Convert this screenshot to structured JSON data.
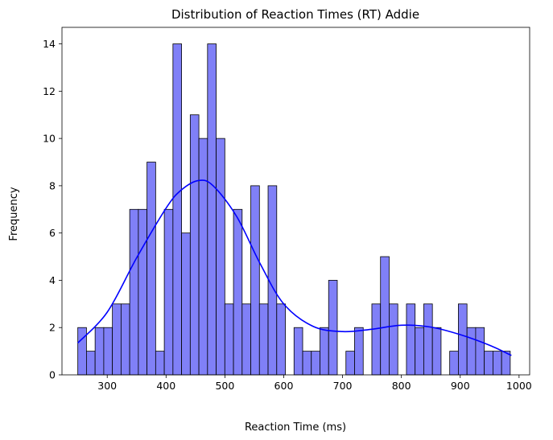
{
  "chart_data": {
    "type": "bar",
    "title": "Distribution of Reaction Times (RT) Addie",
    "xlabel": "Reaction Time (ms)",
    "ylabel": "Frequency",
    "xlim": [
      223.1,
      1018.0
    ],
    "ylim": [
      0,
      14.7
    ],
    "xticks": [
      300,
      400,
      500,
      600,
      700,
      800,
      900,
      1000
    ],
    "yticks": [
      0,
      2,
      4,
      6,
      8,
      10,
      12,
      14
    ],
    "bin_start": 250.0,
    "bin_width": 14.7,
    "counts": [
      2,
      1,
      2,
      2,
      3,
      3,
      7,
      7,
      9,
      1,
      7,
      14,
      6,
      11,
      10,
      14,
      10,
      3,
      7,
      3,
      8,
      3,
      8,
      3,
      0,
      2,
      1,
      1,
      2,
      4,
      0,
      1,
      2,
      0,
      3,
      5,
      3,
      0,
      3,
      2,
      3,
      2,
      0,
      1,
      3,
      2,
      2,
      1,
      1,
      1
    ],
    "kde_x": [
      250,
      300,
      350,
      400,
      425,
      455,
      480,
      520,
      560,
      600,
      650,
      700,
      750,
      800,
      850,
      900,
      950,
      987
    ],
    "kde_y": [
      1.35,
      2.65,
      4.95,
      7.05,
      7.8,
      8.22,
      8.0,
      6.7,
      4.7,
      3.0,
      2.05,
      1.83,
      1.93,
      2.1,
      2.02,
      1.7,
      1.25,
      0.82
    ],
    "grid": false,
    "colors": {
      "bar_fill": "#8080f7",
      "bar_edge": "#000000",
      "kde_line": "#0000ff"
    }
  }
}
